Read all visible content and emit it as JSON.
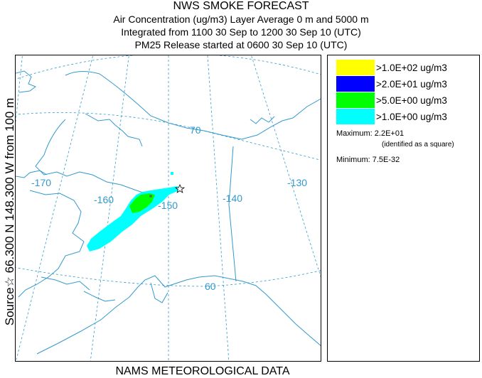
{
  "title": {
    "line1": "NWS SMOKE FORECAST",
    "line2": "Air Concentration (ug/m3) Layer Average    0 m and  5000 m",
    "line3": "Integrated from 1100 30 Sep to 1200 30 Sep 10 (UTC)",
    "line4": "PM25 Release started at 0600 30 Sep 10 (UTC)"
  },
  "side_label": "Source☆ 66.300  N 148.300  W     from   100 m",
  "map": {
    "graticule_labels": {
      "lon_170": "-170",
      "lon_160": "-160",
      "lon_150": "-150",
      "lon_140": "-140",
      "lon_130": "-130",
      "lat_70": "70",
      "lat_60": "60"
    },
    "source_marker": "source-star",
    "colors": {
      "graticule": "#3399cc",
      "coastline": "#3399cc"
    }
  },
  "legend": {
    "items": [
      {
        "label": ">1.0E+02 ug/m3",
        "color": "#ffff00"
      },
      {
        "label": ">2.0E+01 ug/m3",
        "color": "#0000ff"
      },
      {
        "label": ">5.0E+00 ug/m3",
        "color": "#00ff00"
      },
      {
        "label": ">1.0E+00 ug/m3",
        "color": "#00ffff"
      }
    ],
    "maximum": "Maximum: 2.2E+01",
    "maximum_note": "(identified as a square)",
    "minimum": "Minimum: 7.5E-32"
  },
  "footer": "NAMS METEOROLOGICAL DATA"
}
